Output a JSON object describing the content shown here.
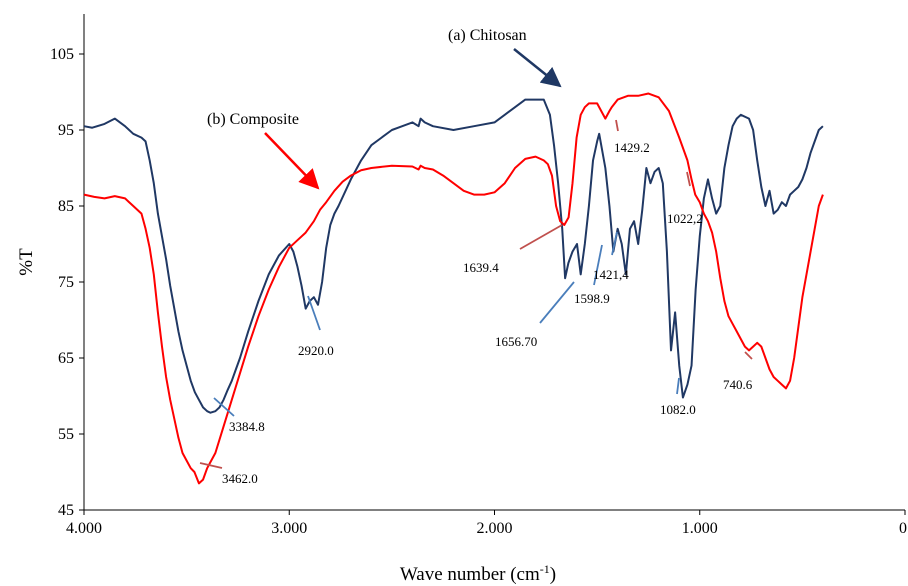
{
  "chart_data": {
    "type": "line",
    "title": "",
    "xlabel": "Wave number",
    "xlabel_unit_base": "cm",
    "xlabel_unit_exp": "-1",
    "ylabel": "%T",
    "xlim": [
      4000,
      0
    ],
    "ylim": [
      45,
      110
    ],
    "x_reversed": true,
    "grid": false,
    "x_ticks": [
      4000,
      3000,
      2000,
      1000,
      0
    ],
    "x_tick_labels": [
      "4.000",
      "3.000",
      "2.000",
      "1.000",
      "0"
    ],
    "y_ticks": [
      45,
      55,
      65,
      75,
      85,
      95,
      105
    ],
    "y_tick_labels": [
      "45",
      "55",
      "65",
      "75",
      "85",
      "95",
      "105"
    ],
    "colors": {
      "chitosan": "#203864",
      "composite": "#ff0000",
      "chitosan_arrow": "#1f3864",
      "chitosan_pointer": "#4a7ebb",
      "composite_pointer": "#c0504d"
    },
    "series": [
      {
        "name": "(a) Chitosan",
        "color": "#203864",
        "points": [
          [
            4000,
            95.5
          ],
          [
            3960,
            95.3
          ],
          [
            3900,
            95.8
          ],
          [
            3850,
            96.5
          ],
          [
            3800,
            95.5
          ],
          [
            3760,
            94.5
          ],
          [
            3720,
            94.0
          ],
          [
            3700,
            93.5
          ],
          [
            3680,
            91.0
          ],
          [
            3660,
            88.0
          ],
          [
            3640,
            84.0
          ],
          [
            3620,
            81.0
          ],
          [
            3600,
            78.0
          ],
          [
            3580,
            74.5
          ],
          [
            3560,
            71.5
          ],
          [
            3540,
            68.5
          ],
          [
            3520,
            66.0
          ],
          [
            3500,
            64.0
          ],
          [
            3480,
            62.0
          ],
          [
            3460,
            60.5
          ],
          [
            3440,
            59.5
          ],
          [
            3420,
            58.5
          ],
          [
            3400,
            58.0
          ],
          [
            3384,
            57.8
          ],
          [
            3360,
            58.0
          ],
          [
            3340,
            58.5
          ],
          [
            3320,
            59.5
          ],
          [
            3300,
            60.8
          ],
          [
            3280,
            62.0
          ],
          [
            3260,
            63.5
          ],
          [
            3240,
            65.0
          ],
          [
            3200,
            68.5
          ],
          [
            3150,
            72.5
          ],
          [
            3100,
            76.0
          ],
          [
            3050,
            78.5
          ],
          [
            3000,
            80.0
          ],
          [
            2980,
            79.0
          ],
          [
            2960,
            77.0
          ],
          [
            2940,
            74.5
          ],
          [
            2920,
            71.5
          ],
          [
            2900,
            72.5
          ],
          [
            2880,
            73.0
          ],
          [
            2860,
            72.0
          ],
          [
            2840,
            75.0
          ],
          [
            2820,
            79.5
          ],
          [
            2800,
            82.5
          ],
          [
            2780,
            84.0
          ],
          [
            2760,
            85.0
          ],
          [
            2700,
            88.5
          ],
          [
            2650,
            91.0
          ],
          [
            2600,
            93.0
          ],
          [
            2500,
            95.0
          ],
          [
            2400,
            96.0
          ],
          [
            2370,
            95.5
          ],
          [
            2360,
            96.5
          ],
          [
            2340,
            96.0
          ],
          [
            2300,
            95.5
          ],
          [
            2200,
            95.0
          ],
          [
            2100,
            95.5
          ],
          [
            2000,
            96.0
          ],
          [
            1950,
            97.0
          ],
          [
            1900,
            98.0
          ],
          [
            1850,
            99.0
          ],
          [
            1800,
            99.0
          ],
          [
            1760,
            99.0
          ],
          [
            1730,
            97.0
          ],
          [
            1710,
            93.0
          ],
          [
            1690,
            88.0
          ],
          [
            1670,
            82.0
          ],
          [
            1656,
            75.5
          ],
          [
            1640,
            77.5
          ],
          [
            1620,
            79.0
          ],
          [
            1598,
            80.0
          ],
          [
            1580,
            76.0
          ],
          [
            1560,
            80.0
          ],
          [
            1540,
            85.0
          ],
          [
            1520,
            91.0
          ],
          [
            1500,
            93.5
          ],
          [
            1490,
            94.5
          ],
          [
            1480,
            93.0
          ],
          [
            1460,
            90.0
          ],
          [
            1440,
            85.0
          ],
          [
            1421,
            79.0
          ],
          [
            1400,
            82.0
          ],
          [
            1380,
            80.0
          ],
          [
            1360,
            76.0
          ],
          [
            1340,
            82.0
          ],
          [
            1320,
            83.0
          ],
          [
            1300,
            80.0
          ],
          [
            1280,
            84.5
          ],
          [
            1260,
            90.0
          ],
          [
            1240,
            88.0
          ],
          [
            1220,
            89.5
          ],
          [
            1200,
            90.0
          ],
          [
            1180,
            88.0
          ],
          [
            1160,
            79.0
          ],
          [
            1140,
            66.0
          ],
          [
            1120,
            71.0
          ],
          [
            1100,
            64.0
          ],
          [
            1082,
            59.8
          ],
          [
            1060,
            61.5
          ],
          [
            1040,
            64.0
          ],
          [
            1020,
            74.0
          ],
          [
            1000,
            81.0
          ],
          [
            980,
            86.0
          ],
          [
            960,
            88.5
          ],
          [
            940,
            86.0
          ],
          [
            920,
            84.0
          ],
          [
            900,
            85.0
          ],
          [
            880,
            90.0
          ],
          [
            860,
            93.0
          ],
          [
            840,
            95.5
          ],
          [
            820,
            96.5
          ],
          [
            800,
            97.0
          ],
          [
            760,
            96.5
          ],
          [
            740,
            95.0
          ],
          [
            720,
            91.0
          ],
          [
            700,
            87.5
          ],
          [
            680,
            85.0
          ],
          [
            660,
            87.0
          ],
          [
            640,
            84.0
          ],
          [
            620,
            84.5
          ],
          [
            600,
            85.5
          ],
          [
            580,
            85.0
          ],
          [
            560,
            86.5
          ],
          [
            540,
            87.0
          ],
          [
            520,
            87.5
          ],
          [
            500,
            88.5
          ],
          [
            480,
            90.0
          ],
          [
            460,
            92.0
          ],
          [
            440,
            93.5
          ],
          [
            420,
            95.0
          ],
          [
            400,
            95.5
          ]
        ]
      },
      {
        "name": "(b) Composite",
        "color": "#ff0000",
        "points": [
          [
            4000,
            86.5
          ],
          [
            3950,
            86.2
          ],
          [
            3900,
            86.0
          ],
          [
            3850,
            86.3
          ],
          [
            3800,
            86.0
          ],
          [
            3760,
            85.0
          ],
          [
            3720,
            84.0
          ],
          [
            3700,
            82.0
          ],
          [
            3680,
            79.5
          ],
          [
            3660,
            76.0
          ],
          [
            3640,
            71.0
          ],
          [
            3620,
            66.5
          ],
          [
            3600,
            62.5
          ],
          [
            3580,
            59.5
          ],
          [
            3560,
            57.0
          ],
          [
            3540,
            54.5
          ],
          [
            3520,
            52.5
          ],
          [
            3500,
            51.5
          ],
          [
            3480,
            50.5
          ],
          [
            3462,
            50.0
          ],
          [
            3440,
            48.5
          ],
          [
            3420,
            49.0
          ],
          [
            3400,
            50.5
          ],
          [
            3360,
            52.5
          ],
          [
            3320,
            56.0
          ],
          [
            3280,
            59.5
          ],
          [
            3240,
            63.0
          ],
          [
            3200,
            66.5
          ],
          [
            3150,
            70.5
          ],
          [
            3100,
            74.0
          ],
          [
            3050,
            77.0
          ],
          [
            3000,
            79.5
          ],
          [
            2960,
            80.5
          ],
          [
            2920,
            81.5
          ],
          [
            2880,
            83.0
          ],
          [
            2850,
            84.5
          ],
          [
            2820,
            85.5
          ],
          [
            2780,
            87.0
          ],
          [
            2740,
            88.2
          ],
          [
            2700,
            89.0
          ],
          [
            2650,
            89.7
          ],
          [
            2600,
            90.0
          ],
          [
            2500,
            90.3
          ],
          [
            2400,
            90.2
          ],
          [
            2370,
            89.8
          ],
          [
            2360,
            90.3
          ],
          [
            2340,
            90.0
          ],
          [
            2300,
            89.8
          ],
          [
            2250,
            89.0
          ],
          [
            2200,
            88.0
          ],
          [
            2150,
            87.0
          ],
          [
            2100,
            86.5
          ],
          [
            2050,
            86.5
          ],
          [
            2000,
            86.8
          ],
          [
            1950,
            88.0
          ],
          [
            1900,
            90.0
          ],
          [
            1850,
            91.2
          ],
          [
            1800,
            91.5
          ],
          [
            1760,
            91.0
          ],
          [
            1740,
            90.5
          ],
          [
            1720,
            89.0
          ],
          [
            1700,
            85.0
          ],
          [
            1680,
            83.0
          ],
          [
            1660,
            82.5
          ],
          [
            1639,
            83.5
          ],
          [
            1620,
            88.0
          ],
          [
            1600,
            94.0
          ],
          [
            1580,
            97.0
          ],
          [
            1560,
            98.0
          ],
          [
            1540,
            98.5
          ],
          [
            1500,
            98.5
          ],
          [
            1480,
            97.5
          ],
          [
            1460,
            96.5
          ],
          [
            1440,
            97.5
          ],
          [
            1429,
            98.0
          ],
          [
            1400,
            99.0
          ],
          [
            1350,
            99.5
          ],
          [
            1300,
            99.5
          ],
          [
            1250,
            99.8
          ],
          [
            1200,
            99.3
          ],
          [
            1150,
            97.5
          ],
          [
            1100,
            94.0
          ],
          [
            1060,
            91.0
          ],
          [
            1040,
            88.5
          ],
          [
            1022,
            86.5
          ],
          [
            1000,
            85.5
          ],
          [
            980,
            84.0
          ],
          [
            960,
            83.0
          ],
          [
            940,
            81.5
          ],
          [
            920,
            79.0
          ],
          [
            900,
            75.5
          ],
          [
            880,
            72.5
          ],
          [
            860,
            70.5
          ],
          [
            840,
            69.5
          ],
          [
            820,
            68.5
          ],
          [
            800,
            67.5
          ],
          [
            780,
            66.5
          ],
          [
            760,
            66.0
          ],
          [
            740,
            66.5
          ],
          [
            720,
            67.0
          ],
          [
            700,
            66.5
          ],
          [
            680,
            65.0
          ],
          [
            660,
            63.5
          ],
          [
            640,
            62.5
          ],
          [
            620,
            62.0
          ],
          [
            600,
            61.5
          ],
          [
            580,
            61.0
          ],
          [
            560,
            62.0
          ],
          [
            540,
            65.0
          ],
          [
            520,
            69.0
          ],
          [
            500,
            73.0
          ],
          [
            480,
            76.0
          ],
          [
            460,
            79.0
          ],
          [
            440,
            82.0
          ],
          [
            420,
            85.0
          ],
          [
            400,
            86.5
          ]
        ]
      }
    ],
    "series_labels": [
      {
        "text": "(a) Chitosan",
        "target": [
          1820,
          99.0
        ],
        "series": "chitosan"
      },
      {
        "text": "(b) Composite",
        "target": [
          2820,
          86.0
        ],
        "series": "composite"
      }
    ],
    "annotations": [
      {
        "text": "3384.8",
        "series": "chitosan"
      },
      {
        "text": "2920.0",
        "series": "chitosan"
      },
      {
        "text": "1656.70",
        "series": "chitosan"
      },
      {
        "text": "1598.9",
        "series": "chitosan"
      },
      {
        "text": "1421,4",
        "series": "chitosan"
      },
      {
        "text": "1082.0",
        "series": "chitosan"
      },
      {
        "text": "3462.0",
        "series": "composite"
      },
      {
        "text": "1639.4",
        "series": "composite"
      },
      {
        "text": "1429.2",
        "series": "composite"
      },
      {
        "text": "1022,2",
        "series": "composite"
      },
      {
        "text": "740.6",
        "series": "composite"
      }
    ]
  }
}
